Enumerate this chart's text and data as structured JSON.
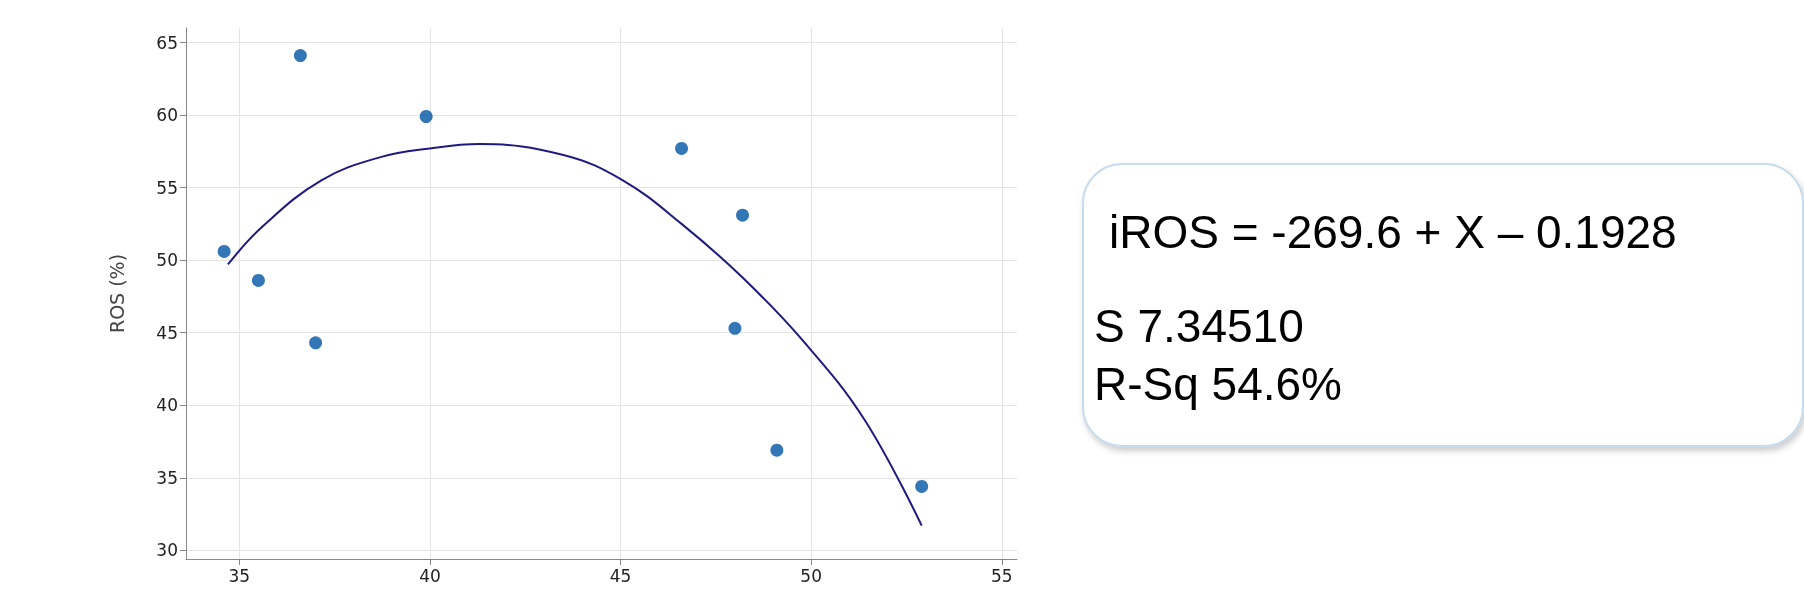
{
  "chart_data": {
    "type": "scatter",
    "ylabel": "ROS (%)",
    "xlim": [
      33.6,
      55.4
    ],
    "ylim": [
      29.4,
      66
    ],
    "xticks": [
      35,
      40,
      45,
      50,
      55
    ],
    "yticks": [
      30,
      35,
      40,
      45,
      50,
      55,
      60,
      65
    ],
    "grid": true,
    "marker": "circle",
    "series": [
      {
        "color": "#0055a5",
        "x": [
          34.6,
          35.5,
          36.6,
          37.0,
          39.9,
          46.6,
          48.0,
          48.2,
          49.1,
          52.9
        ],
        "values": [
          50.6,
          48.6,
          64.1,
          44.3,
          59.9,
          57.7,
          45.3,
          53.1,
          36.9,
          34.4
        ]
      },
      {
        "type": "line",
        "color": "#1f1a80",
        "marker": "none",
        "x": [
          34.7,
          35.6,
          37.15,
          38.7,
          40.0,
          41.3,
          43.5,
          45.06,
          46.6,
          48.2,
          49.8,
          51.4,
          52.9
        ],
        "values": [
          49.7,
          52.3,
          55.5,
          57.1,
          57.7,
          58.0,
          57.25,
          55.5,
          52.5,
          48.8,
          44.4,
          39.0,
          31.7
        ]
      }
    ],
    "annotations": [
      "iROS = -269.6 + X – 0.1928",
      "S 7.34510",
      "R-Sq 54.6%"
    ]
  }
}
